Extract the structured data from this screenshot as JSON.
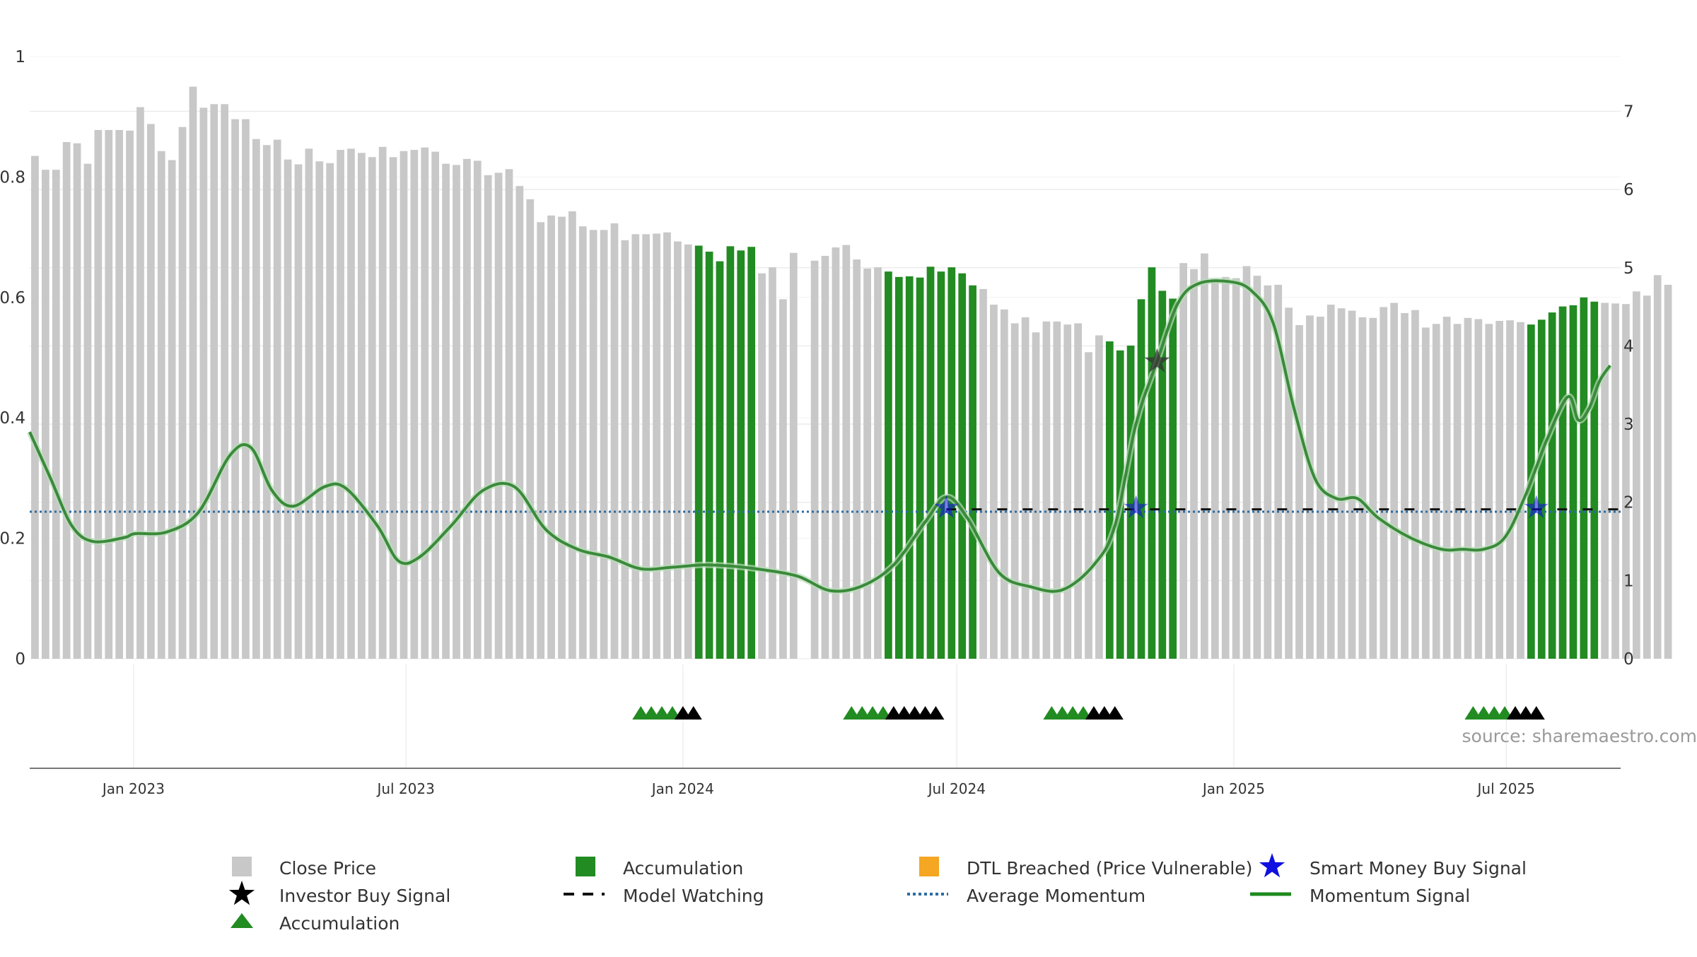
{
  "chart_data": {
    "type": "bar",
    "source": "source: sharemaestro.com",
    "left_axis": {
      "ticks": [
        "0",
        "0.2",
        "0.4",
        "0.6",
        "0.8",
        "1"
      ],
      "range": [
        0,
        1
      ]
    },
    "right_axis": {
      "ticks": [
        "0",
        "1",
        "2",
        "3",
        "4",
        "5",
        "6",
        "7"
      ],
      "range": [
        0,
        7.7
      ]
    },
    "x_axis": {
      "ticks": [
        {
          "date": "2023-01-01",
          "label": "Jan 2023"
        },
        {
          "date": "2023-07-01",
          "label": "Jul 2023"
        },
        {
          "date": "2024-01-01",
          "label": "Jan 2024"
        },
        {
          "date": "2024-07-01",
          "label": "Jul 2024"
        },
        {
          "date": "2025-01-01",
          "label": "Jan 2025"
        },
        {
          "date": "2025-07-01",
          "label": "Jul 2025"
        }
      ]
    },
    "series": [
      {
        "name": "Close Price",
        "axis": "left",
        "start_date": "2022-10-24",
        "interval_days": 7,
        "values": [
          0.835,
          0.812,
          0.812,
          0.858,
          0.856,
          0.822,
          0.878,
          0.878,
          0.878,
          0.877,
          0.916,
          0.888,
          0.843,
          0.828,
          0.883,
          0.95,
          0.915,
          0.921,
          0.921,
          0.896,
          0.896,
          0.863,
          0.853,
          0.862,
          0.829,
          0.821,
          0.847,
          0.826,
          0.823,
          0.845,
          0.847,
          0.84,
          0.833,
          0.85,
          0.833,
          0.843,
          0.845,
          0.849,
          0.842,
          0.822,
          0.82,
          0.83,
          0.827,
          0.803,
          0.807,
          0.813,
          0.785,
          0.763,
          0.725,
          0.736,
          0.734,
          0.743,
          0.718,
          0.712,
          0.712,
          0.723,
          0.695,
          0.705,
          0.705,
          0.706,
          0.708,
          0.693,
          0.688,
          0.686,
          0.676,
          0.66,
          0.685,
          0.678,
          0.684,
          0.64,
          0.65,
          0.597,
          0.674,
          0.0,
          0.661,
          0.669,
          0.683,
          0.687,
          0.663,
          0.648,
          0.65,
          0.643,
          0.634,
          0.635,
          0.633,
          0.651,
          0.643,
          0.65,
          0.64,
          0.62,
          0.614,
          0.588,
          0.58,
          0.557,
          0.567,
          0.542,
          0.56,
          0.56,
          0.555,
          0.557,
          0.509,
          0.537,
          0.527,
          0.512,
          0.52,
          0.597,
          0.65,
          0.611,
          0.598,
          0.657,
          0.647,
          0.673,
          0.631,
          0.634,
          0.632,
          0.652,
          0.636,
          0.62,
          0.621,
          0.583,
          0.554,
          0.57,
          0.568,
          0.588,
          0.582,
          0.578,
          0.567,
          0.566,
          0.584,
          0.591,
          0.574,
          0.579,
          0.55,
          0.556,
          0.568,
          0.556,
          0.566,
          0.564,
          0.556,
          0.561,
          0.562,
          0.559,
          0.555,
          0.563,
          0.575,
          0.585,
          0.587,
          0.6,
          0.593,
          0.591,
          0.59,
          0.589,
          0.61,
          0.603,
          0.637,
          0.621
        ],
        "accumulation_ranges": [
          [
            63,
            68
          ],
          [
            81,
            89
          ],
          [
            102,
            108
          ],
          [
            142,
            148
          ]
        ]
      },
      {
        "name": "Momentum Signal",
        "axis": "right",
        "points": [
          [
            "2022-10-24",
            2.9
          ],
          [
            "2022-11-07",
            2.3
          ],
          [
            "2022-11-21",
            1.7
          ],
          [
            "2022-12-05",
            1.5
          ],
          [
            "2022-12-26",
            1.55
          ],
          [
            "2023-01-02",
            1.6
          ],
          [
            "2023-01-23",
            1.62
          ],
          [
            "2023-02-13",
            1.87
          ],
          [
            "2023-03-06",
            2.6
          ],
          [
            "2023-03-20",
            2.7
          ],
          [
            "2023-04-03",
            2.15
          ],
          [
            "2023-04-17",
            1.95
          ],
          [
            "2023-05-08",
            2.2
          ],
          [
            "2023-05-22",
            2.18
          ],
          [
            "2023-06-12",
            1.7
          ],
          [
            "2023-06-26",
            1.25
          ],
          [
            "2023-07-10",
            1.3
          ],
          [
            "2023-07-31",
            1.7
          ],
          [
            "2023-08-21",
            2.15
          ],
          [
            "2023-09-11",
            2.2
          ],
          [
            "2023-10-02",
            1.65
          ],
          [
            "2023-10-23",
            1.4
          ],
          [
            "2023-11-13",
            1.3
          ],
          [
            "2023-12-04",
            1.15
          ],
          [
            "2023-12-25",
            1.17
          ],
          [
            "2024-01-15",
            1.2
          ],
          [
            "2024-02-05",
            1.18
          ],
          [
            "2024-02-26",
            1.13
          ],
          [
            "2024-03-18",
            1.05
          ],
          [
            "2024-04-08",
            0.87
          ],
          [
            "2024-04-29",
            0.93
          ],
          [
            "2024-05-20",
            1.2
          ],
          [
            "2024-06-10",
            1.75
          ],
          [
            "2024-06-24",
            2.07
          ],
          [
            "2024-07-08",
            1.8
          ],
          [
            "2024-07-29",
            1.1
          ],
          [
            "2024-08-19",
            0.92
          ],
          [
            "2024-09-09",
            0.88
          ],
          [
            "2024-09-30",
            1.2
          ],
          [
            "2024-10-14",
            1.7
          ],
          [
            "2024-10-28",
            3.0
          ],
          [
            "2024-11-11",
            3.8
          ],
          [
            "2024-11-25",
            4.55
          ],
          [
            "2024-12-09",
            4.8
          ],
          [
            "2024-12-30",
            4.82
          ],
          [
            "2025-01-13",
            4.7
          ],
          [
            "2025-01-27",
            4.3
          ],
          [
            "2025-02-10",
            3.2
          ],
          [
            "2025-02-24",
            2.3
          ],
          [
            "2025-03-10",
            2.05
          ],
          [
            "2025-03-24",
            2.05
          ],
          [
            "2025-04-07",
            1.8
          ],
          [
            "2025-04-28",
            1.55
          ],
          [
            "2025-05-19",
            1.4
          ],
          [
            "2025-06-02",
            1.4
          ],
          [
            "2025-06-16",
            1.4
          ],
          [
            "2025-06-30",
            1.55
          ],
          [
            "2025-07-14",
            2.1
          ],
          [
            "2025-07-28",
            2.8
          ],
          [
            "2025-08-11",
            3.35
          ],
          [
            "2025-08-18",
            3.05
          ],
          [
            "2025-08-25",
            3.2
          ],
          [
            "2025-09-01",
            3.55
          ],
          [
            "2025-09-08",
            3.75
          ]
        ]
      },
      {
        "name": "Average Momentum",
        "axis": "right",
        "value": 1.88
      },
      {
        "name": "Model Watching",
        "axis": "right",
        "value": 1.91,
        "start_date": "2024-06-24"
      }
    ],
    "smart_money_buy_signals": [
      {
        "date": "2024-06-24",
        "value": 1.93
      },
      {
        "date": "2024-10-28",
        "value": 1.93
      },
      {
        "date": "2025-07-21",
        "value": 1.93
      }
    ],
    "investor_buy_signals": [
      {
        "date": "2024-11-11",
        "value": 3.8
      }
    ],
    "triangle_markers": [
      {
        "date": "2023-12-04",
        "color": "green"
      },
      {
        "date": "2023-12-11",
        "color": "green"
      },
      {
        "date": "2023-12-18",
        "color": "green"
      },
      {
        "date": "2023-12-25",
        "color": "green"
      },
      {
        "date": "2024-01-01",
        "color": "black"
      },
      {
        "date": "2024-01-08",
        "color": "black"
      },
      {
        "date": "2024-04-22",
        "color": "green"
      },
      {
        "date": "2024-04-29",
        "color": "green"
      },
      {
        "date": "2024-05-06",
        "color": "green"
      },
      {
        "date": "2024-05-13",
        "color": "green"
      },
      {
        "date": "2024-05-20",
        "color": "black"
      },
      {
        "date": "2024-05-27",
        "color": "black"
      },
      {
        "date": "2024-06-03",
        "color": "black"
      },
      {
        "date": "2024-06-10",
        "color": "black"
      },
      {
        "date": "2024-06-17",
        "color": "black"
      },
      {
        "date": "2024-09-02",
        "color": "green"
      },
      {
        "date": "2024-09-09",
        "color": "green"
      },
      {
        "date": "2024-09-16",
        "color": "green"
      },
      {
        "date": "2024-09-23",
        "color": "green"
      },
      {
        "date": "2024-09-30",
        "color": "black"
      },
      {
        "date": "2024-10-07",
        "color": "black"
      },
      {
        "date": "2024-10-14",
        "color": "black"
      },
      {
        "date": "2025-06-09",
        "color": "green"
      },
      {
        "date": "2025-06-16",
        "color": "green"
      },
      {
        "date": "2025-06-23",
        "color": "green"
      },
      {
        "date": "2025-06-30",
        "color": "green"
      },
      {
        "date": "2025-07-07",
        "color": "black"
      },
      {
        "date": "2025-07-14",
        "color": "black"
      },
      {
        "date": "2025-07-21",
        "color": "black"
      }
    ],
    "legend": {
      "placement": "bottom",
      "entries": [
        {
          "label": "Close Price",
          "symbol": "gray-square"
        },
        {
          "label": "Accumulation",
          "symbol": "green-square"
        },
        {
          "label": "DTL Breached (Price Vulnerable)",
          "symbol": "orange-square"
        },
        {
          "label": "Smart Money Buy Signal",
          "symbol": "blue-star"
        },
        {
          "label": "Investor Buy Signal",
          "symbol": "black-star"
        },
        {
          "label": "Model Watching",
          "symbol": "black-dash-line"
        },
        {
          "label": "Average Momentum",
          "symbol": "blue-dotted-line"
        },
        {
          "label": "Momentum Signal",
          "symbol": "green-line"
        },
        {
          "label": "Accumulation",
          "symbol": "green-triangle"
        }
      ]
    },
    "colors": {
      "close_price": "#c8c8c8",
      "accumulation": "#228b22",
      "dtl_breached": "#f5a623",
      "smart_money": "#1010e0",
      "investor": "#000000",
      "model_watching": "#111111",
      "average_momentum": "#2b6ca3",
      "momentum_signal": "#3a8a3a",
      "grid": "#ececec"
    },
    "grid": true
  }
}
